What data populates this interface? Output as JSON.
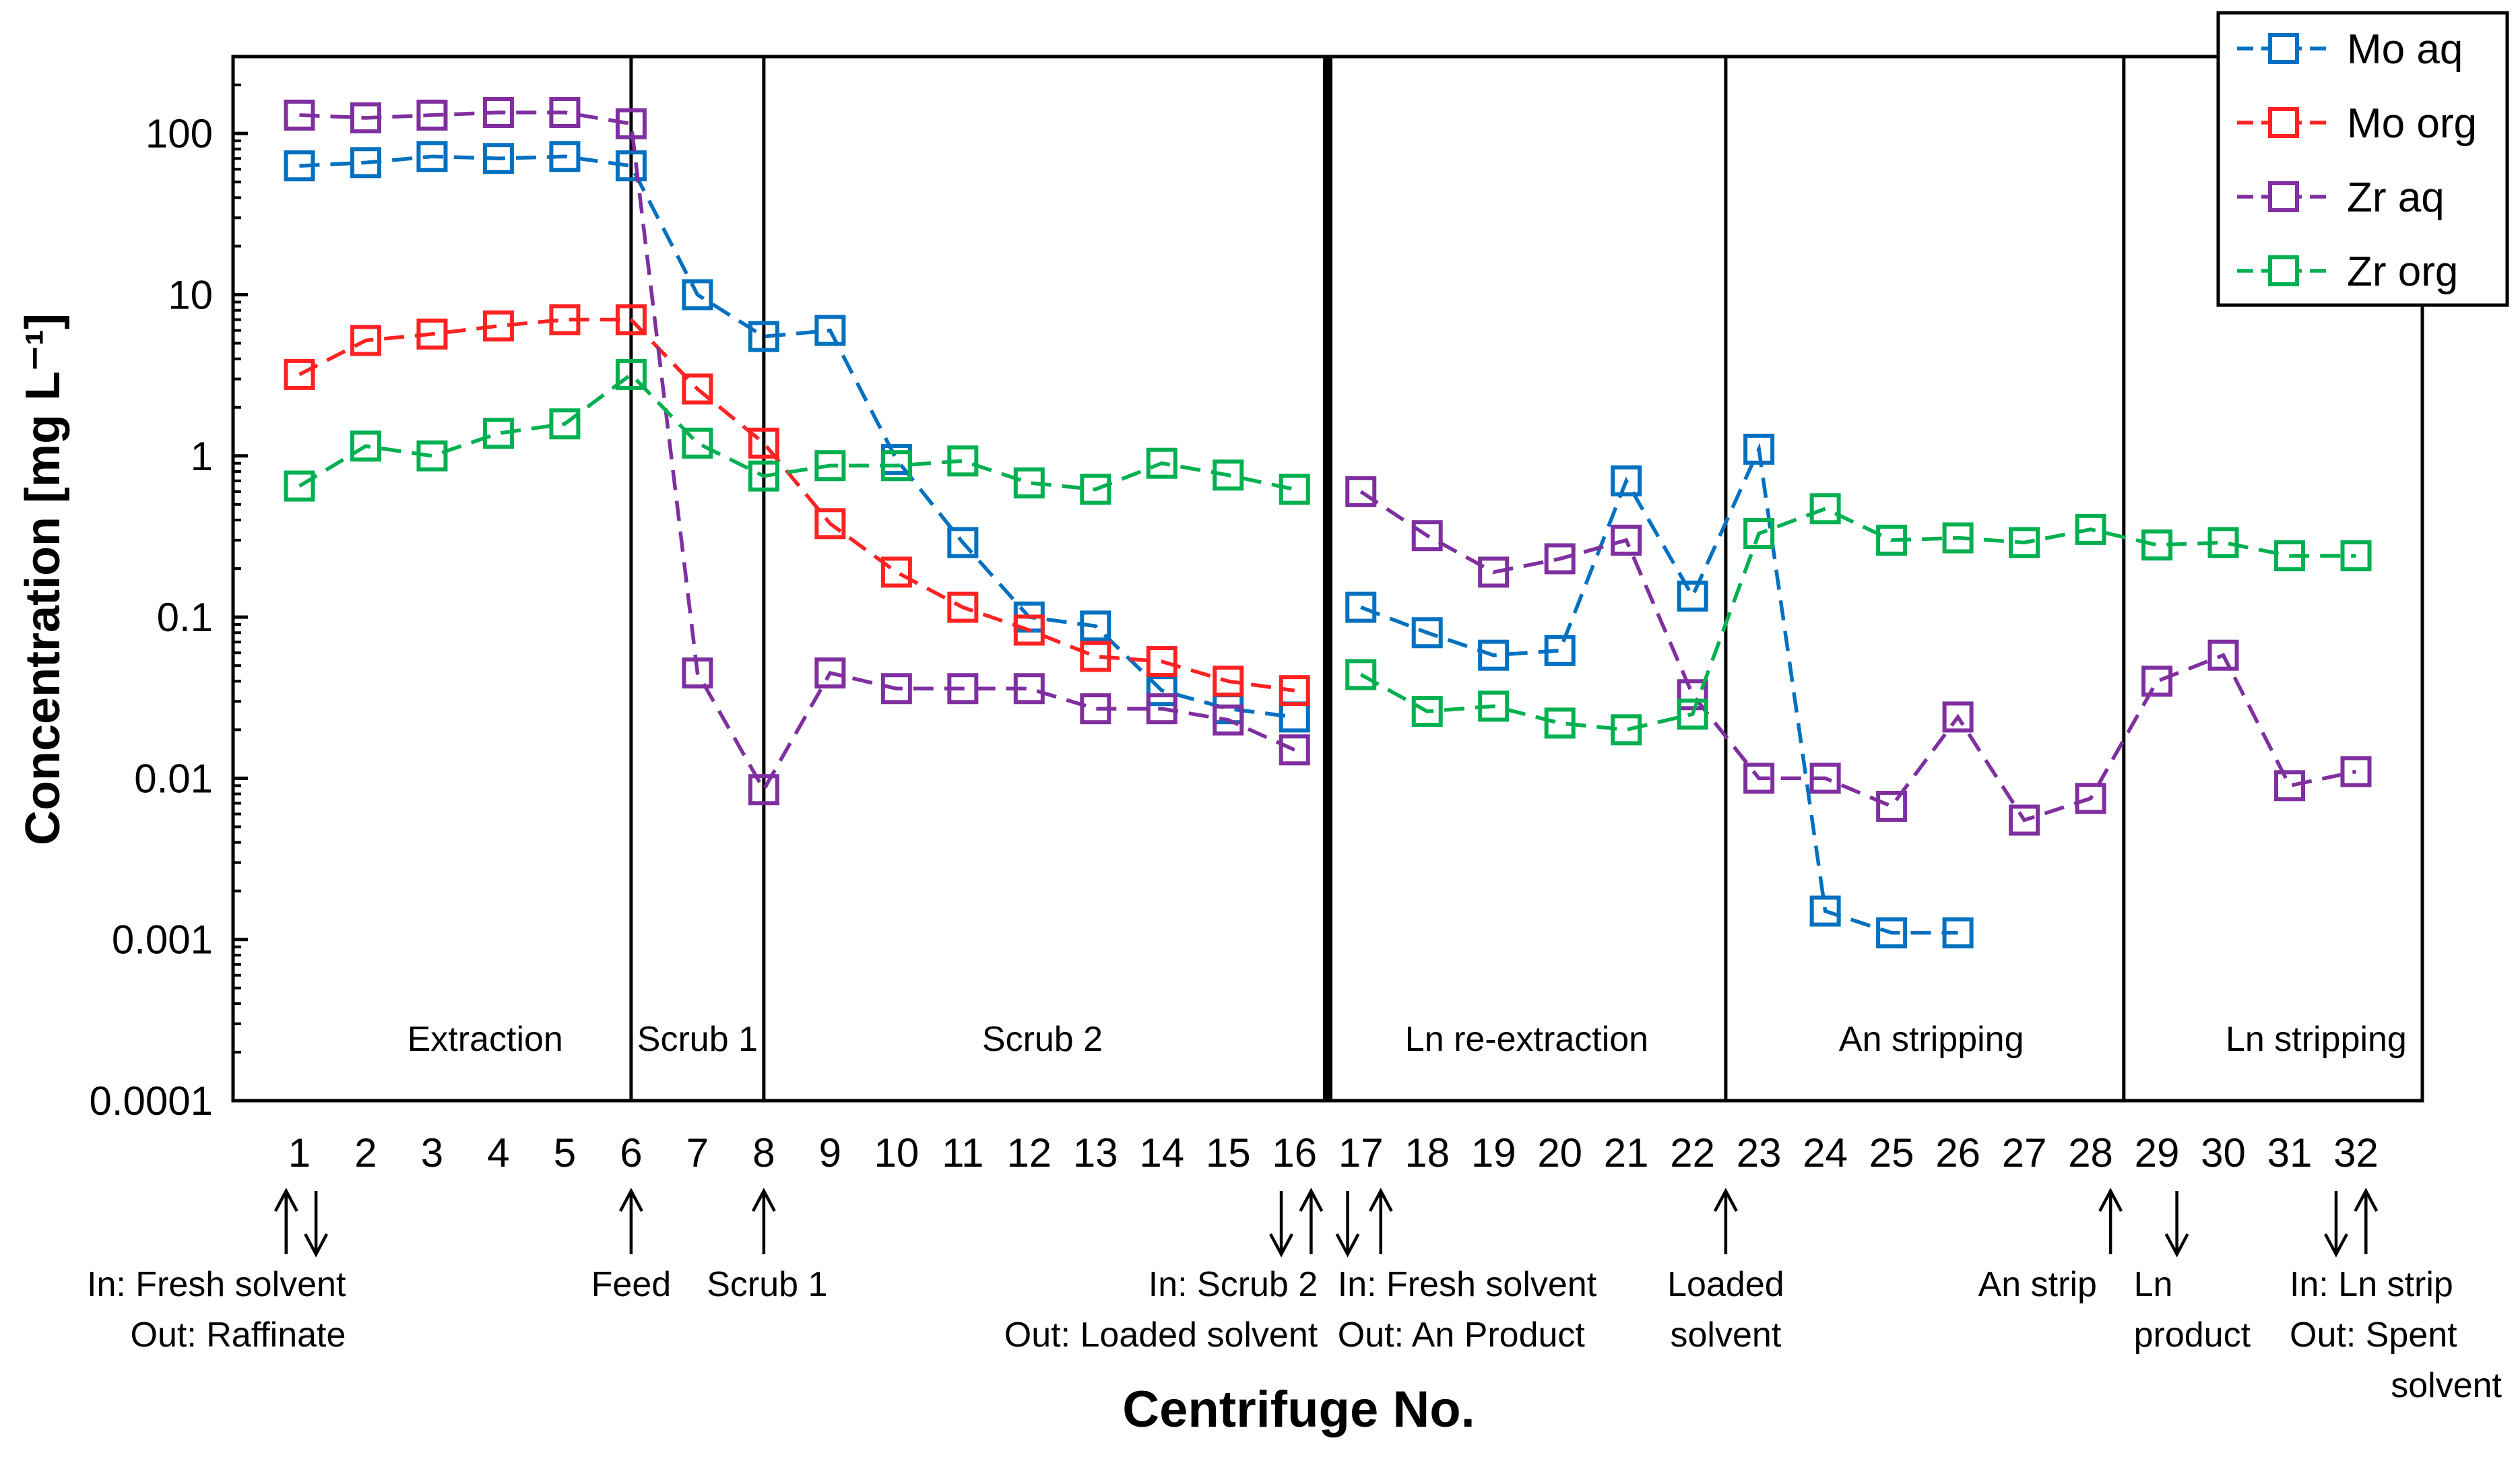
{
  "chart_data": {
    "type": "line",
    "title": "",
    "xlabel": "Centrifuge No.",
    "ylabel": "Concentration [mg L⁻¹]",
    "yscale": "log",
    "ylim": [
      0.0001,
      300
    ],
    "xlim": [
      0,
      33
    ],
    "y_ticks": [
      {
        "value": 100,
        "label": "100"
      },
      {
        "value": 10,
        "label": "10"
      },
      {
        "value": 1,
        "label": "1"
      },
      {
        "value": 0.1,
        "label": "0.1"
      },
      {
        "value": 0.01,
        "label": "0.01"
      },
      {
        "value": 0.001,
        "label": "0.001"
      },
      {
        "value": 0.0001,
        "label": "0.0001"
      }
    ],
    "x": [
      1,
      2,
      3,
      4,
      5,
      6,
      7,
      8,
      9,
      10,
      11,
      12,
      13,
      14,
      15,
      16,
      17,
      18,
      19,
      20,
      21,
      22,
      23,
      24,
      25,
      26,
      27,
      28,
      29,
      30,
      31,
      32
    ],
    "x_tick_labels": [
      "1",
      "2",
      "3",
      "4",
      "5",
      "6",
      "7",
      "8",
      "9",
      "10",
      "11",
      "12",
      "13",
      "14",
      "15",
      "16",
      "17",
      "18",
      "19",
      "20",
      "21",
      "22",
      "23",
      "24",
      "25",
      "26",
      "27",
      "28",
      "29",
      "30",
      "31",
      "32"
    ],
    "line_break_after": 16,
    "legend_position": "top-right",
    "series": [
      {
        "name": "Mo aq",
        "color": "#0070C0",
        "marker": "square-open",
        "line": "dashed",
        "values": [
          63,
          66,
          72,
          70,
          72,
          63,
          10,
          5.5,
          6,
          0.95,
          0.29,
          0.1,
          0.088,
          0.035,
          0.027,
          0.024,
          0.115,
          0.08,
          0.058,
          0.062,
          0.7,
          0.135,
          1.1,
          0.0015,
          0.0011,
          0.0011,
          null,
          null,
          null,
          null,
          null,
          null
        ]
      },
      {
        "name": "Mo org",
        "color": "#FF2222",
        "marker": "square-open",
        "line": "dashed",
        "values": [
          3.2,
          5.2,
          5.7,
          6.4,
          7,
          7,
          2.6,
          1.2,
          0.38,
          0.19,
          0.115,
          0.083,
          0.057,
          0.053,
          0.04,
          0.035,
          null,
          null,
          null,
          null,
          null,
          null,
          null,
          null,
          null,
          null,
          null,
          null,
          null,
          null,
          null,
          null
        ]
      },
      {
        "name": "Zr aq",
        "color": "#7F2F9F",
        "marker": "square-open",
        "line": "dashed",
        "values": [
          130,
          125,
          130,
          135,
          135,
          115,
          0.045,
          0.0085,
          0.045,
          0.036,
          0.036,
          0.036,
          0.027,
          0.027,
          0.023,
          0.015,
          0.6,
          0.32,
          0.19,
          0.23,
          0.3,
          0.033,
          0.01,
          0.01,
          0.0067,
          0.024,
          0.0055,
          0.0075,
          0.04,
          0.058,
          0.009,
          0.011
        ]
      },
      {
        "name": "Zr org",
        "color": "#00B050",
        "marker": "square-open",
        "line": "dashed",
        "values": [
          0.65,
          1.15,
          1.0,
          1.38,
          1.58,
          3.2,
          1.2,
          0.75,
          0.87,
          0.87,
          0.93,
          0.68,
          0.62,
          0.9,
          0.76,
          0.62,
          0.044,
          0.026,
          0.028,
          0.022,
          0.02,
          0.025,
          0.33,
          0.47,
          0.3,
          0.31,
          0.29,
          0.35,
          0.28,
          0.29,
          0.24,
          0.24
        ]
      }
    ],
    "section_dividers": [
      {
        "x": 6,
        "weight": "normal"
      },
      {
        "x": 8,
        "weight": "normal"
      },
      {
        "x": 16.5,
        "weight": "bold"
      },
      {
        "x": 22.5,
        "weight": "normal"
      },
      {
        "x": 28.5,
        "weight": "normal"
      }
    ],
    "sections": [
      {
        "label": "Extraction",
        "x": 3.8
      },
      {
        "label": "Scrub 1",
        "x": 7
      },
      {
        "label": "Scrub 2",
        "x": 12.2
      },
      {
        "label": "Ln re-extraction",
        "x": 19.5
      },
      {
        "label": "An stripping",
        "x": 25.6
      },
      {
        "label": "Ln stripping",
        "x": 31.4
      }
    ],
    "flow_arrows": [
      {
        "x": 0.8,
        "dir": "up"
      },
      {
        "x": 1.25,
        "dir": "down"
      },
      {
        "x": 6,
        "dir": "up"
      },
      {
        "x": 8,
        "dir": "up"
      },
      {
        "x": 15.8,
        "dir": "down"
      },
      {
        "x": 16.25,
        "dir": "up"
      },
      {
        "x": 16.8,
        "dir": "down"
      },
      {
        "x": 17.3,
        "dir": "up"
      },
      {
        "x": 22.5,
        "dir": "up"
      },
      {
        "x": 28.3,
        "dir": "up"
      },
      {
        "x": 29.3,
        "dir": "down"
      },
      {
        "x": 31.7,
        "dir": "down"
      },
      {
        "x": 32.15,
        "dir": "up"
      }
    ],
    "annotations": [
      {
        "lines": [
          "In: Fresh solvent",
          "Out: Raffinate"
        ],
        "x": 1.7,
        "anchor": "end"
      },
      {
        "lines": [
          "Feed"
        ],
        "x": 6,
        "anchor": "middle"
      },
      {
        "lines": [
          "Scrub 1"
        ],
        "x": 8.05,
        "anchor": "middle"
      },
      {
        "lines": [
          "In: Scrub 2",
          "Out: Loaded solvent"
        ],
        "x": 16.35,
        "anchor": "end"
      },
      {
        "lines": [
          "In: Fresh solvent",
          "Out: An Product"
        ],
        "x": 16.65,
        "anchor": "start"
      },
      {
        "lines": [
          "Loaded",
          "solvent"
        ],
        "x": 22.5,
        "anchor": "middle"
      },
      {
        "lines": [
          "An strip"
        ],
        "x": 27.2,
        "anchor": "middle"
      },
      {
        "lines": [
          "Ln",
          "product"
        ],
        "x": 28.65,
        "anchor": "start"
      },
      {
        "lines": [
          "In: Ln strip",
          "Out: Spent",
          "solvent"
        ],
        "x": 31,
        "anchor": "start"
      }
    ]
  }
}
